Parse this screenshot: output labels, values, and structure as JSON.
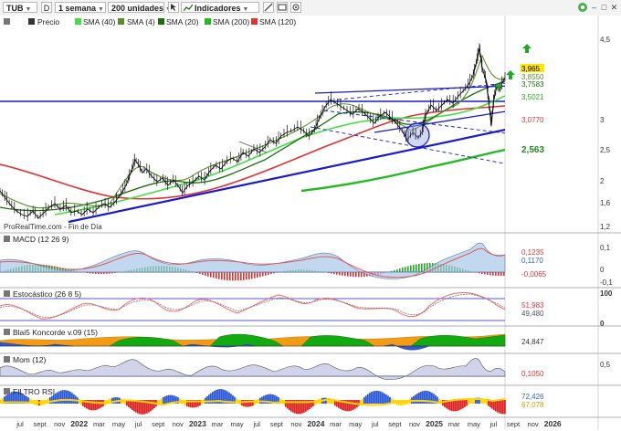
{
  "toolbar": {
    "symbol": "TUB",
    "d_label": "D",
    "timeframe": "1 semana",
    "units": "200 unidades",
    "indicators": "Indicadores"
  },
  "price_panel": {
    "legend": {
      "price": "Precio",
      "sma40": "SMA (40)",
      "sma4": "SMA (4)",
      "sma20": "SMA (20)",
      "sma200": "SMA (200)",
      "sma120": "SMA (120)"
    },
    "ticks": [
      "4,5",
      "3",
      "2,5",
      "2",
      "1,6",
      "1,2"
    ],
    "value_labels": {
      "last": "3,965",
      "sma4": "3,8550",
      "sma20": "3,7583",
      "sma40": "3,5021",
      "sma120": "3,0770",
      "sma200": "2,563"
    },
    "source": "ProRealTime.com - Fin de Día",
    "colors": {
      "sma40": "#44dd44",
      "sma4": "#5a8e2c",
      "sma20": "#1d6d10",
      "sma200": "#22bb22",
      "sma120": "#dd3333",
      "trend": "#1a1acc"
    }
  },
  "macd_panel": {
    "label": "MACD (12 26 9)",
    "values": [
      "0,1235",
      "0,1170",
      "-0,0065"
    ],
    "ticks": [
      "0,1",
      "0",
      "-0,1"
    ]
  },
  "stoch_panel": {
    "label": "Estocástico (26 8 5)",
    "values": [
      "51,983",
      "49,480"
    ],
    "ticks": [
      "100",
      "0"
    ]
  },
  "koncorde_panel": {
    "label": "Blai5 Koncorde v.09 (15)",
    "values": [
      "24,847"
    ]
  },
  "mom_panel": {
    "label": "Mom (12)",
    "values": [
      "0,1050"
    ],
    "ticks": [
      "0,5"
    ]
  },
  "rsi_panel": {
    "label": "FILTRO RSI",
    "values": [
      "72,426",
      "67,078"
    ]
  },
  "x_axis": [
    "jul",
    "sept",
    "nov",
    "2022",
    "mar",
    "may",
    "jul",
    "sept",
    "nov",
    "2023",
    "mar",
    "may",
    "jul",
    "sept",
    "nov",
    "2024",
    "mar",
    "may",
    "jul",
    "sept",
    "nov",
    "2025",
    "mar",
    "may",
    "jul",
    "sept",
    "nov",
    "2026"
  ]
}
